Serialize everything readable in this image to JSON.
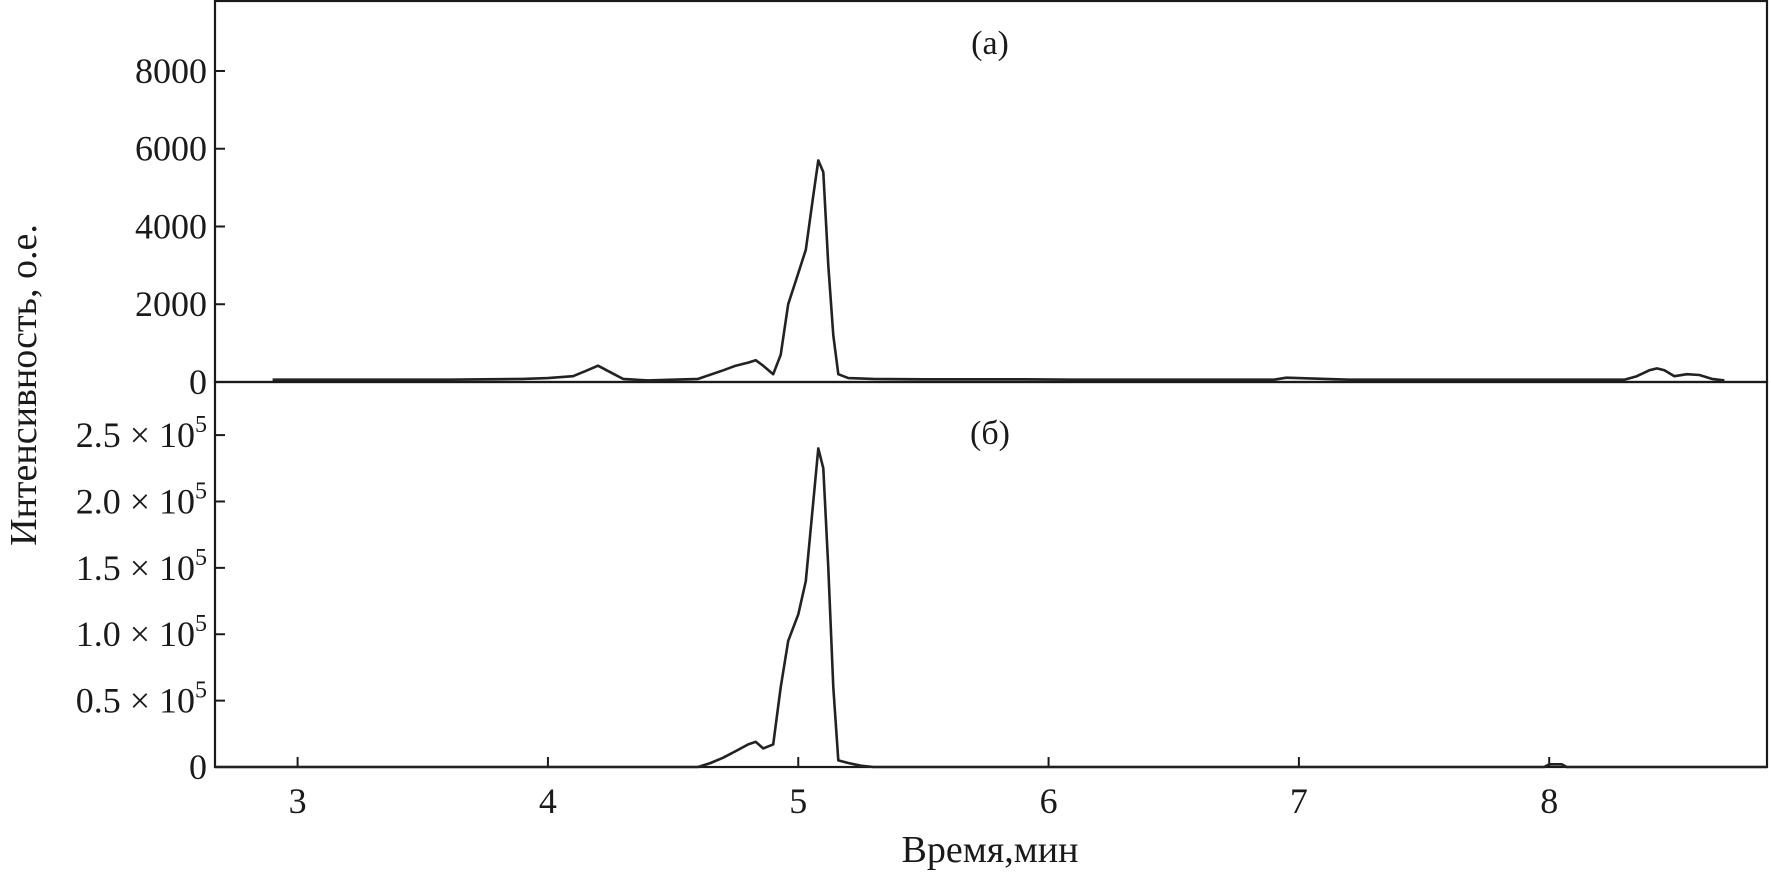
{
  "chart_data": [
    {
      "type": "line",
      "panel_label": "(a)",
      "xlim": [
        2.67,
        8.87
      ],
      "ylim": [
        0,
        9800
      ],
      "yticks": [
        {
          "value": 0,
          "label": "0"
        },
        {
          "value": 2000,
          "label": "2000"
        },
        {
          "value": 4000,
          "label": "4000"
        },
        {
          "value": 6000,
          "label": "6000"
        },
        {
          "value": 8000,
          "label": "8000"
        }
      ],
      "grid": false,
      "x": [
        2.9,
        3.1,
        3.6,
        3.9,
        4.0,
        4.1,
        4.15,
        4.2,
        4.25,
        4.3,
        4.4,
        4.5,
        4.6,
        4.7,
        4.75,
        4.8,
        4.83,
        4.86,
        4.9,
        4.93,
        4.96,
        5.0,
        5.03,
        5.06,
        5.08,
        5.1,
        5.12,
        5.14,
        5.16,
        5.2,
        5.3,
        5.5,
        5.9,
        6.1,
        6.3,
        6.5,
        6.7,
        6.9,
        6.95,
        7.2,
        7.5,
        7.8,
        8.0,
        8.2,
        8.3,
        8.35,
        8.4,
        8.43,
        8.46,
        8.5,
        8.55,
        8.6,
        8.65,
        8.7
      ],
      "y": [
        60,
        60,
        60,
        80,
        100,
        150,
        280,
        420,
        250,
        80,
        40,
        60,
        80,
        300,
        420,
        500,
        560,
        420,
        200,
        700,
        2000,
        2800,
        3400,
        4800,
        5700,
        5400,
        3000,
        1200,
        200,
        100,
        80,
        70,
        70,
        60,
        60,
        60,
        60,
        60,
        110,
        60,
        60,
        60,
        60,
        60,
        60,
        150,
        300,
        350,
        300,
        150,
        200,
        180,
        80,
        40
      ]
    },
    {
      "type": "line",
      "panel_label": "(б)",
      "xlim": [
        2.67,
        8.87
      ],
      "ylim": [
        0,
        290000
      ],
      "yticks": [
        {
          "value": 0,
          "label": "0",
          "mant": "",
          "exp": ""
        },
        {
          "value": 50000,
          "label": "0.5 × 10^5",
          "mant": "0.5 × 10",
          "exp": "5"
        },
        {
          "value": 100000,
          "label": "1.0 × 10^5",
          "mant": "1.0 × 10",
          "exp": "5"
        },
        {
          "value": 150000,
          "label": "1.5 × 10^5",
          "mant": "1.5 × 10",
          "exp": "5"
        },
        {
          "value": 200000,
          "label": "2.0 × 10^5",
          "mant": "2.0 × 10",
          "exp": "5"
        },
        {
          "value": 250000,
          "label": "2.5 × 10^5",
          "mant": "2.5 × 10",
          "exp": "5"
        }
      ],
      "grid": false,
      "x": [
        2.67,
        4.6,
        4.65,
        4.7,
        4.75,
        4.8,
        4.83,
        4.86,
        4.9,
        4.93,
        4.96,
        5.0,
        5.03,
        5.06,
        5.08,
        5.1,
        5.12,
        5.14,
        5.16,
        5.2,
        5.25,
        5.3,
        7.98,
        8.0,
        8.05,
        8.07,
        8.87
      ],
      "y": [
        0,
        0,
        3000,
        7000,
        12000,
        17000,
        19000,
        14000,
        17000,
        60000,
        95000,
        115000,
        140000,
        200000,
        240000,
        225000,
        150000,
        60000,
        5000,
        3000,
        1000,
        0,
        0,
        2000,
        2000,
        0,
        0
      ]
    }
  ],
  "xaxis": {
    "label": "Время,мин",
    "ticks": [
      3,
      4,
      5,
      6,
      7,
      8
    ]
  },
  "yaxis": {
    "label": "Интенсивность, о.е."
  }
}
